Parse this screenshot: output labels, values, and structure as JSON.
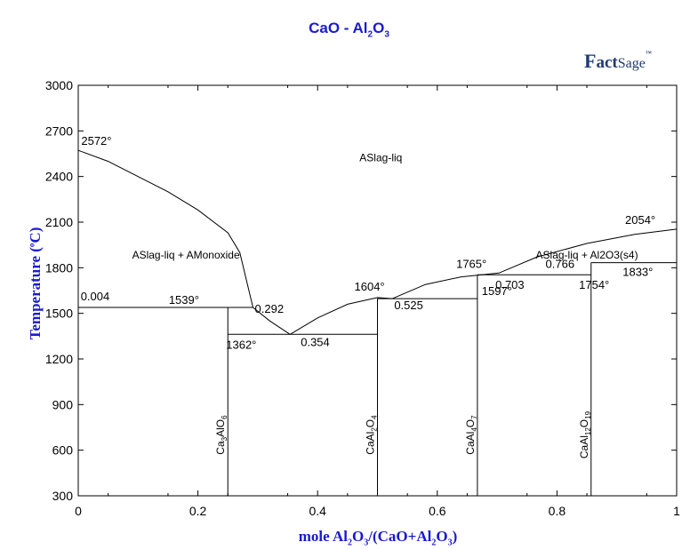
{
  "title": {
    "main": "CaO - Al",
    "sub1": "2",
    "mid": "O",
    "sub2": "3"
  },
  "logo": {
    "f": "F",
    "act": "act",
    "sage": "Sage",
    "tm": "™"
  },
  "colors": {
    "title": "#1a1ad0",
    "lines": "#000000",
    "axes_text": "#000000"
  },
  "chart_data": {
    "type": "line",
    "title": "CaO - Al2O3",
    "xlabel": "mole Al2O3/(CaO+Al2O3)",
    "ylabel": "Temperature (°C)",
    "xlim": [
      0,
      1
    ],
    "ylim": [
      300,
      3000
    ],
    "xticks": [
      0,
      0.2,
      0.4,
      0.6,
      0.8,
      1
    ],
    "xtick_labels": [
      "0",
      "0.2",
      "0.4",
      "0.6",
      "0.8",
      "1"
    ],
    "yticks": [
      300,
      600,
      900,
      1200,
      1500,
      1800,
      2100,
      2400,
      2700,
      3000
    ],
    "ytick_labels": [
      "300",
      "600",
      "900",
      "1200",
      "1500",
      "1800",
      "2100",
      "2400",
      "2700",
      "3000"
    ],
    "grid": false,
    "liquidus": [
      {
        "name": "CaO liquidus",
        "points": [
          [
            0,
            2572
          ],
          [
            0.05,
            2500
          ],
          [
            0.1,
            2400
          ],
          [
            0.15,
            2300
          ],
          [
            0.2,
            2180
          ],
          [
            0.25,
            2030
          ],
          [
            0.27,
            1900
          ],
          [
            0.292,
            1539
          ]
        ]
      },
      {
        "name": "liquidus to eutectic",
        "points": [
          [
            0.292,
            1539
          ],
          [
            0.32,
            1450
          ],
          [
            0.354,
            1362
          ]
        ]
      },
      {
        "name": "CaAl2O4 liquidus",
        "points": [
          [
            0.354,
            1362
          ],
          [
            0.4,
            1470
          ],
          [
            0.45,
            1560
          ],
          [
            0.5,
            1604
          ],
          [
            0.525,
            1597
          ]
        ]
      },
      {
        "name": "CaAl4O7 liquidus",
        "points": [
          [
            0.525,
            1597
          ],
          [
            0.58,
            1690
          ],
          [
            0.64,
            1740
          ],
          [
            0.703,
            1765
          ],
          [
            0.766,
            1870
          ],
          [
            0.85,
            1960
          ],
          [
            0.93,
            2020
          ],
          [
            1,
            2054
          ]
        ]
      }
    ],
    "isotherms": [
      {
        "x": [
          0,
          0.292
        ],
        "y": 1539
      },
      {
        "x": [
          0.25,
          0.5
        ],
        "y": 1362
      },
      {
        "x": [
          0.5,
          0.667
        ],
        "y": 1597
      },
      {
        "x": [
          0.667,
          0.857
        ],
        "y": 1754
      },
      {
        "x": [
          0.857,
          1
        ],
        "y": 1833
      }
    ],
    "compounds": [
      {
        "x": 0.25,
        "label_main": "Ca",
        "label_sub1": "3",
        "label_mid": "AlO",
        "label_sub2": "6"
      },
      {
        "x": 0.5,
        "label_main": "CaAl",
        "label_sub1": "2",
        "label_mid": "O",
        "label_sub2": "4"
      },
      {
        "x": 0.667,
        "label_main": "CaAl",
        "label_sub1": "4",
        "label_mid": "O",
        "label_sub2": "7"
      },
      {
        "x": 0.857,
        "label_main": "CaAl",
        "label_sub1": "12",
        "label_mid": "O",
        "label_sub2": "19"
      }
    ],
    "annotations": [
      {
        "text": "2572°",
        "x": 0.005,
        "y": 2572
      },
      {
        "text": "0.004",
        "x": 0.004,
        "y": 1539
      },
      {
        "text": "1539°",
        "x": 0.08,
        "y": 1539
      },
      {
        "text": "0.292",
        "x": 0.292,
        "y": 1539
      },
      {
        "text": "1362°",
        "x": 0.25,
        "y": 1362
      },
      {
        "text": "0.354",
        "x": 0.354,
        "y": 1362
      },
      {
        "text": "1604°",
        "x": 0.5,
        "y": 1604
      },
      {
        "text": "0.525",
        "x": 0.525,
        "y": 1597
      },
      {
        "text": "1597°",
        "x": 0.6,
        "y": 1597
      },
      {
        "text": "1765°",
        "x": 0.7,
        "y": 1765
      },
      {
        "text": "0.766",
        "x": 0.766,
        "y": 1765
      },
      {
        "text": "0.703",
        "x": 0.703,
        "y": 1754
      },
      {
        "text": "1754°",
        "x": 0.81,
        "y": 1754
      },
      {
        "text": "1833°",
        "x": 0.88,
        "y": 1833
      },
      {
        "text": "2054°",
        "x": 1.0,
        "y": 2054
      }
    ],
    "region_labels": [
      {
        "text": "ASlag-liq",
        "x": 0.47,
        "y": 2500
      },
      {
        "text": "ASlag-liq + AMonoxide",
        "x": 0.09,
        "y": 1860
      },
      {
        "text": "ASlag-liq + Al2O3(s4)",
        "x": 0.85,
        "y": 1860
      }
    ]
  }
}
